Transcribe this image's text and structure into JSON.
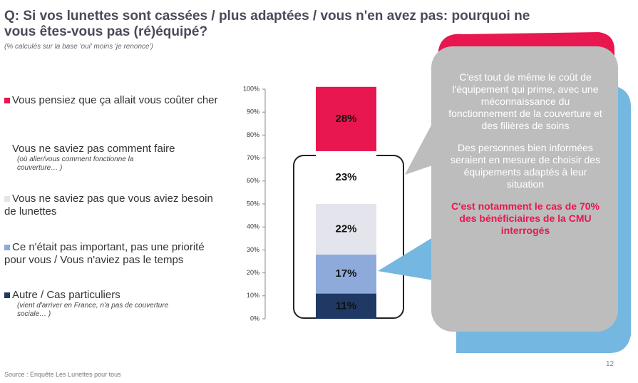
{
  "title": "Q: Si vos lunettes sont cassées / plus adaptées / vous n'en avez pas: pourquoi ne vous êtes-vous pas (ré)équipé?",
  "subtitle": "(% calculés sur la base 'oui' moins 'je renonce')",
  "chart_data": {
    "type": "stacked-bar",
    "ylim": [
      0,
      100
    ],
    "yticks": [
      {
        "value": 0,
        "label": "0%"
      },
      {
        "value": 10,
        "label": "10%"
      },
      {
        "value": 20,
        "label": "20%"
      },
      {
        "value": 30,
        "label": "30%"
      },
      {
        "value": 40,
        "label": "40%"
      },
      {
        "value": 50,
        "label": "50%"
      },
      {
        "value": 60,
        "label": "60%"
      },
      {
        "value": 70,
        "label": "70%"
      },
      {
        "value": 80,
        "label": "80%"
      },
      {
        "value": 90,
        "label": "90%"
      },
      {
        "value": 100,
        "label": "100%"
      }
    ],
    "series": [
      {
        "name": "Vous pensiez que ça allait vous coûter cher",
        "color": "#e8174f",
        "values": [
          28
        ],
        "value_labels": [
          "28%"
        ]
      },
      {
        "name": "Vous ne saviez pas comment faire",
        "note": "(où aller/vous comment fonctionne la couverture… )",
        "color": "#ffffff",
        "values": [
          23
        ],
        "value_labels": [
          "23%"
        ]
      },
      {
        "name": "Vous ne saviez pas que vous aviez besoin de lunettes",
        "color": "#e4e4ec",
        "values": [
          22
        ],
        "value_labels": [
          "22%"
        ]
      },
      {
        "name": "Ce n'était pas important, pas une priorité pour vous / Vous n'aviez pas le temps",
        "color": "#8eaadb",
        "values": [
          17
        ],
        "value_labels": [
          "17%"
        ]
      },
      {
        "name": "Autre / Cas particuliers",
        "note": "(vient d'arriver en France, n'a pas de couverture sociale… )",
        "color": "#1f3864",
        "values": [
          11
        ],
        "value_labels": [
          "11%"
        ]
      }
    ]
  },
  "callout": {
    "paragraphs": [
      "C'est tout de même le coût de l'équipement qui prime, avec une méconnaissance du fonctionnement de la couverture et des filières de soins",
      "Des personnes bien informées seraient en mesure de choisir des équipements adaptés à leur situation"
    ],
    "highlight": "C'est notamment le cas de 70% des bénéficiaires de la CMU interrogés"
  },
  "footer": {
    "source": "Source : Enquête Les Lunettes pour tous",
    "page": "12"
  }
}
